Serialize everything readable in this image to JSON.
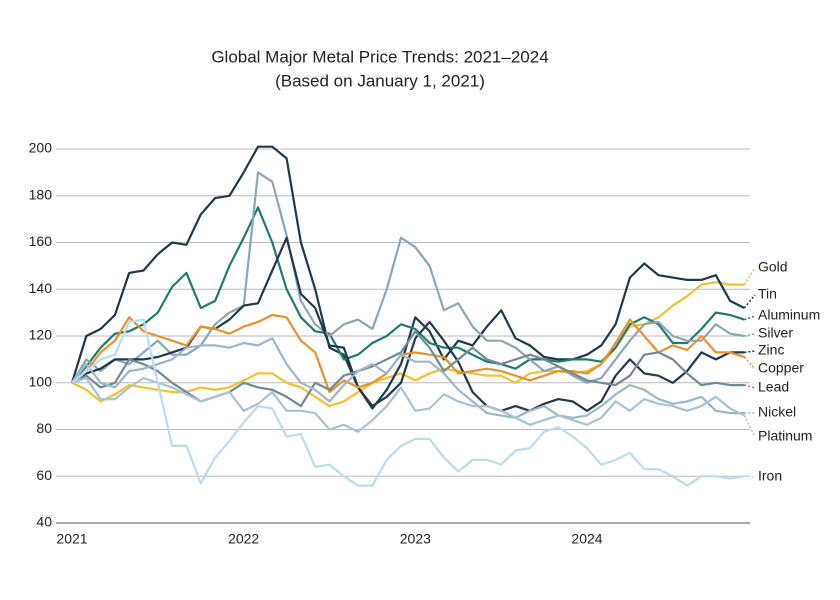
{
  "chart_data": {
    "type": "line",
    "title": "Global Major Metal Price Trends: 2021–2024",
    "subtitle": "(Based on January 1, 2021)",
    "categories": [
      "2021",
      null,
      null,
      null,
      null,
      null,
      null,
      null,
      null,
      null,
      null,
      null,
      "2022",
      null,
      null,
      null,
      null,
      null,
      null,
      null,
      null,
      null,
      null,
      null,
      "2023",
      null,
      null,
      null,
      null,
      null,
      null,
      null,
      null,
      null,
      null,
      null,
      "2024",
      null,
      null,
      null,
      null,
      null,
      null,
      null,
      null,
      null,
      null,
      null
    ],
    "ylim": [
      40,
      200
    ],
    "yticks": [
      40,
      60,
      80,
      100,
      120,
      140,
      160,
      180,
      200
    ],
    "grid": true,
    "series": [
      {
        "name": "Gold",
        "color": "#f2c12e",
        "values": [
          100,
          97,
          92,
          95,
          99,
          98,
          97,
          96,
          96,
          98,
          97,
          98,
          101,
          104,
          104,
          100,
          98,
          94,
          90,
          92,
          96,
          100,
          102,
          104,
          101,
          104,
          106,
          105,
          104,
          103,
          103,
          100,
          104,
          105,
          105,
          104,
          105,
          108,
          115,
          124,
          125,
          128,
          133,
          137,
          142,
          143,
          142,
          142
        ]
      },
      {
        "name": "Tin",
        "color": "#1b3a4b",
        "values": [
          100,
          120,
          123,
          129,
          147,
          148,
          155,
          160,
          159,
          172,
          179,
          180,
          190,
          201,
          201,
          196,
          160,
          140,
          115,
          112,
          98,
          89,
          97,
          108,
          128,
          122,
          110,
          118,
          116,
          124,
          131,
          119,
          116,
          111,
          110,
          110,
          112,
          116,
          125,
          145,
          151,
          146,
          145,
          144,
          144,
          146,
          135,
          132
        ]
      },
      {
        "name": "Aluminum",
        "color": "#1e7b6e",
        "values": [
          100,
          107,
          115,
          121,
          122,
          125,
          130,
          141,
          147,
          132,
          135,
          150,
          162,
          175,
          160,
          140,
          128,
          122,
          121,
          110,
          112,
          117,
          120,
          125,
          123,
          117,
          115,
          115,
          112,
          109,
          108,
          106,
          110,
          110,
          109,
          110,
          110,
          109,
          115,
          125,
          128,
          125,
          117,
          117,
          123,
          130,
          129,
          127
        ]
      },
      {
        "name": "Silver",
        "color": "#8aa6b8",
        "values": [
          100,
          110,
          105,
          110,
          108,
          113,
          118,
          112,
          112,
          116,
          125,
          130,
          133,
          190,
          186,
          163,
          135,
          125,
          120,
          125,
          127,
          123,
          140,
          162,
          158,
          150,
          131,
          134,
          124,
          118,
          118,
          115,
          110,
          105,
          107,
          103,
          100,
          102,
          110,
          118,
          125,
          126,
          120,
          118,
          118,
          125,
          121,
          120
        ]
      },
      {
        "name": "Zinc",
        "color": "#22384a",
        "values": [
          100,
          104,
          106,
          110,
          110,
          110,
          111,
          113,
          115,
          124,
          123,
          127,
          133,
          134,
          148,
          162,
          138,
          132,
          116,
          115,
          98,
          90,
          94,
          100,
          119,
          126,
          118,
          109,
          96,
          90,
          88,
          90,
          88,
          91,
          93,
          92,
          88,
          92,
          103,
          110,
          104,
          103,
          100,
          105,
          113,
          110,
          113,
          113
        ]
      },
      {
        "name": "Copper",
        "color": "#e8922c",
        "values": [
          100,
          105,
          113,
          118,
          128,
          122,
          120,
          118,
          116,
          124,
          123,
          121,
          124,
          126,
          129,
          128,
          118,
          113,
          96,
          101,
          98,
          100,
          104,
          112,
          113,
          112,
          111,
          104,
          105,
          106,
          105,
          103,
          101,
          103,
          105,
          105,
          104,
          108,
          117,
          127,
          120,
          113,
          116,
          114,
          120,
          113,
          113,
          111
        ]
      },
      {
        "name": "Lead",
        "color": "#6f8a99",
        "values": [
          100,
          103,
          98,
          100,
          110,
          108,
          105,
          100,
          96,
          92,
          94,
          96,
          100,
          98,
          97,
          94,
          90,
          100,
          97,
          103,
          105,
          107,
          110,
          113,
          122,
          115,
          105,
          110,
          115,
          110,
          108,
          110,
          112,
          110,
          107,
          104,
          101,
          100,
          99,
          103,
          112,
          113,
          110,
          104,
          99,
          100,
          99,
          99
        ]
      },
      {
        "name": "Nickel",
        "color": "#9bb7c8",
        "values": [
          100,
          108,
          100,
          98,
          105,
          106,
          108,
          110,
          115,
          116,
          116,
          115,
          117,
          116,
          119,
          108,
          100,
          97,
          92,
          99,
          105,
          108,
          104,
          112,
          109,
          109,
          104,
          97,
          92,
          87,
          86,
          85,
          88,
          90,
          86,
          85,
          86,
          90,
          95,
          99,
          97,
          93,
          91,
          92,
          94,
          88,
          87,
          87
        ]
      },
      {
        "name": "Platinum",
        "color": "#a8c4d4",
        "values": [
          100,
          102,
          93,
          93,
          98,
          102,
          100,
          98,
          95,
          92,
          94,
          96,
          88,
          91,
          96,
          88,
          88,
          87,
          80,
          82,
          79,
          84,
          90,
          98,
          88,
          89,
          95,
          92,
          90,
          90,
          88,
          85,
          82,
          84,
          86,
          84,
          82,
          85,
          92,
          88,
          93,
          91,
          90,
          88,
          90,
          94,
          89,
          86
        ]
      },
      {
        "name": "Iron",
        "color": "#b9dcef",
        "values": [
          100,
          105,
          110,
          112,
          126,
          127,
          100,
          73,
          73,
          57,
          68,
          75,
          83,
          90,
          89,
          77,
          78,
          64,
          65,
          60,
          56,
          56,
          67,
          73,
          76,
          76,
          68,
          62,
          67,
          67,
          65,
          71,
          72,
          79,
          81,
          77,
          72,
          65,
          67,
          70,
          63,
          63,
          60,
          56,
          60,
          60,
          59,
          60
        ]
      }
    ]
  }
}
